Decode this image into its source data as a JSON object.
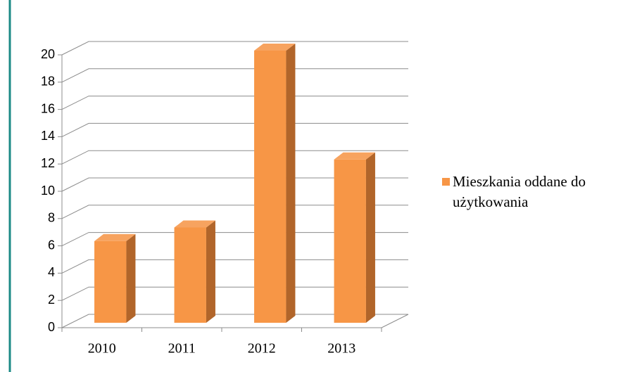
{
  "chart_data": {
    "type": "bar3d",
    "categories": [
      "2010",
      "2011",
      "2012",
      "2013"
    ],
    "series": [
      {
        "name": "Mieszkania oddane do użytkowania",
        "color": "#f79646",
        "values": [
          6,
          7,
          20,
          12
        ]
      }
    ],
    "ylim": [
      0,
      20
    ],
    "yticks": [
      0,
      2,
      4,
      6,
      8,
      10,
      12,
      14,
      16,
      18,
      20
    ],
    "grid": true,
    "legend": "right"
  }
}
